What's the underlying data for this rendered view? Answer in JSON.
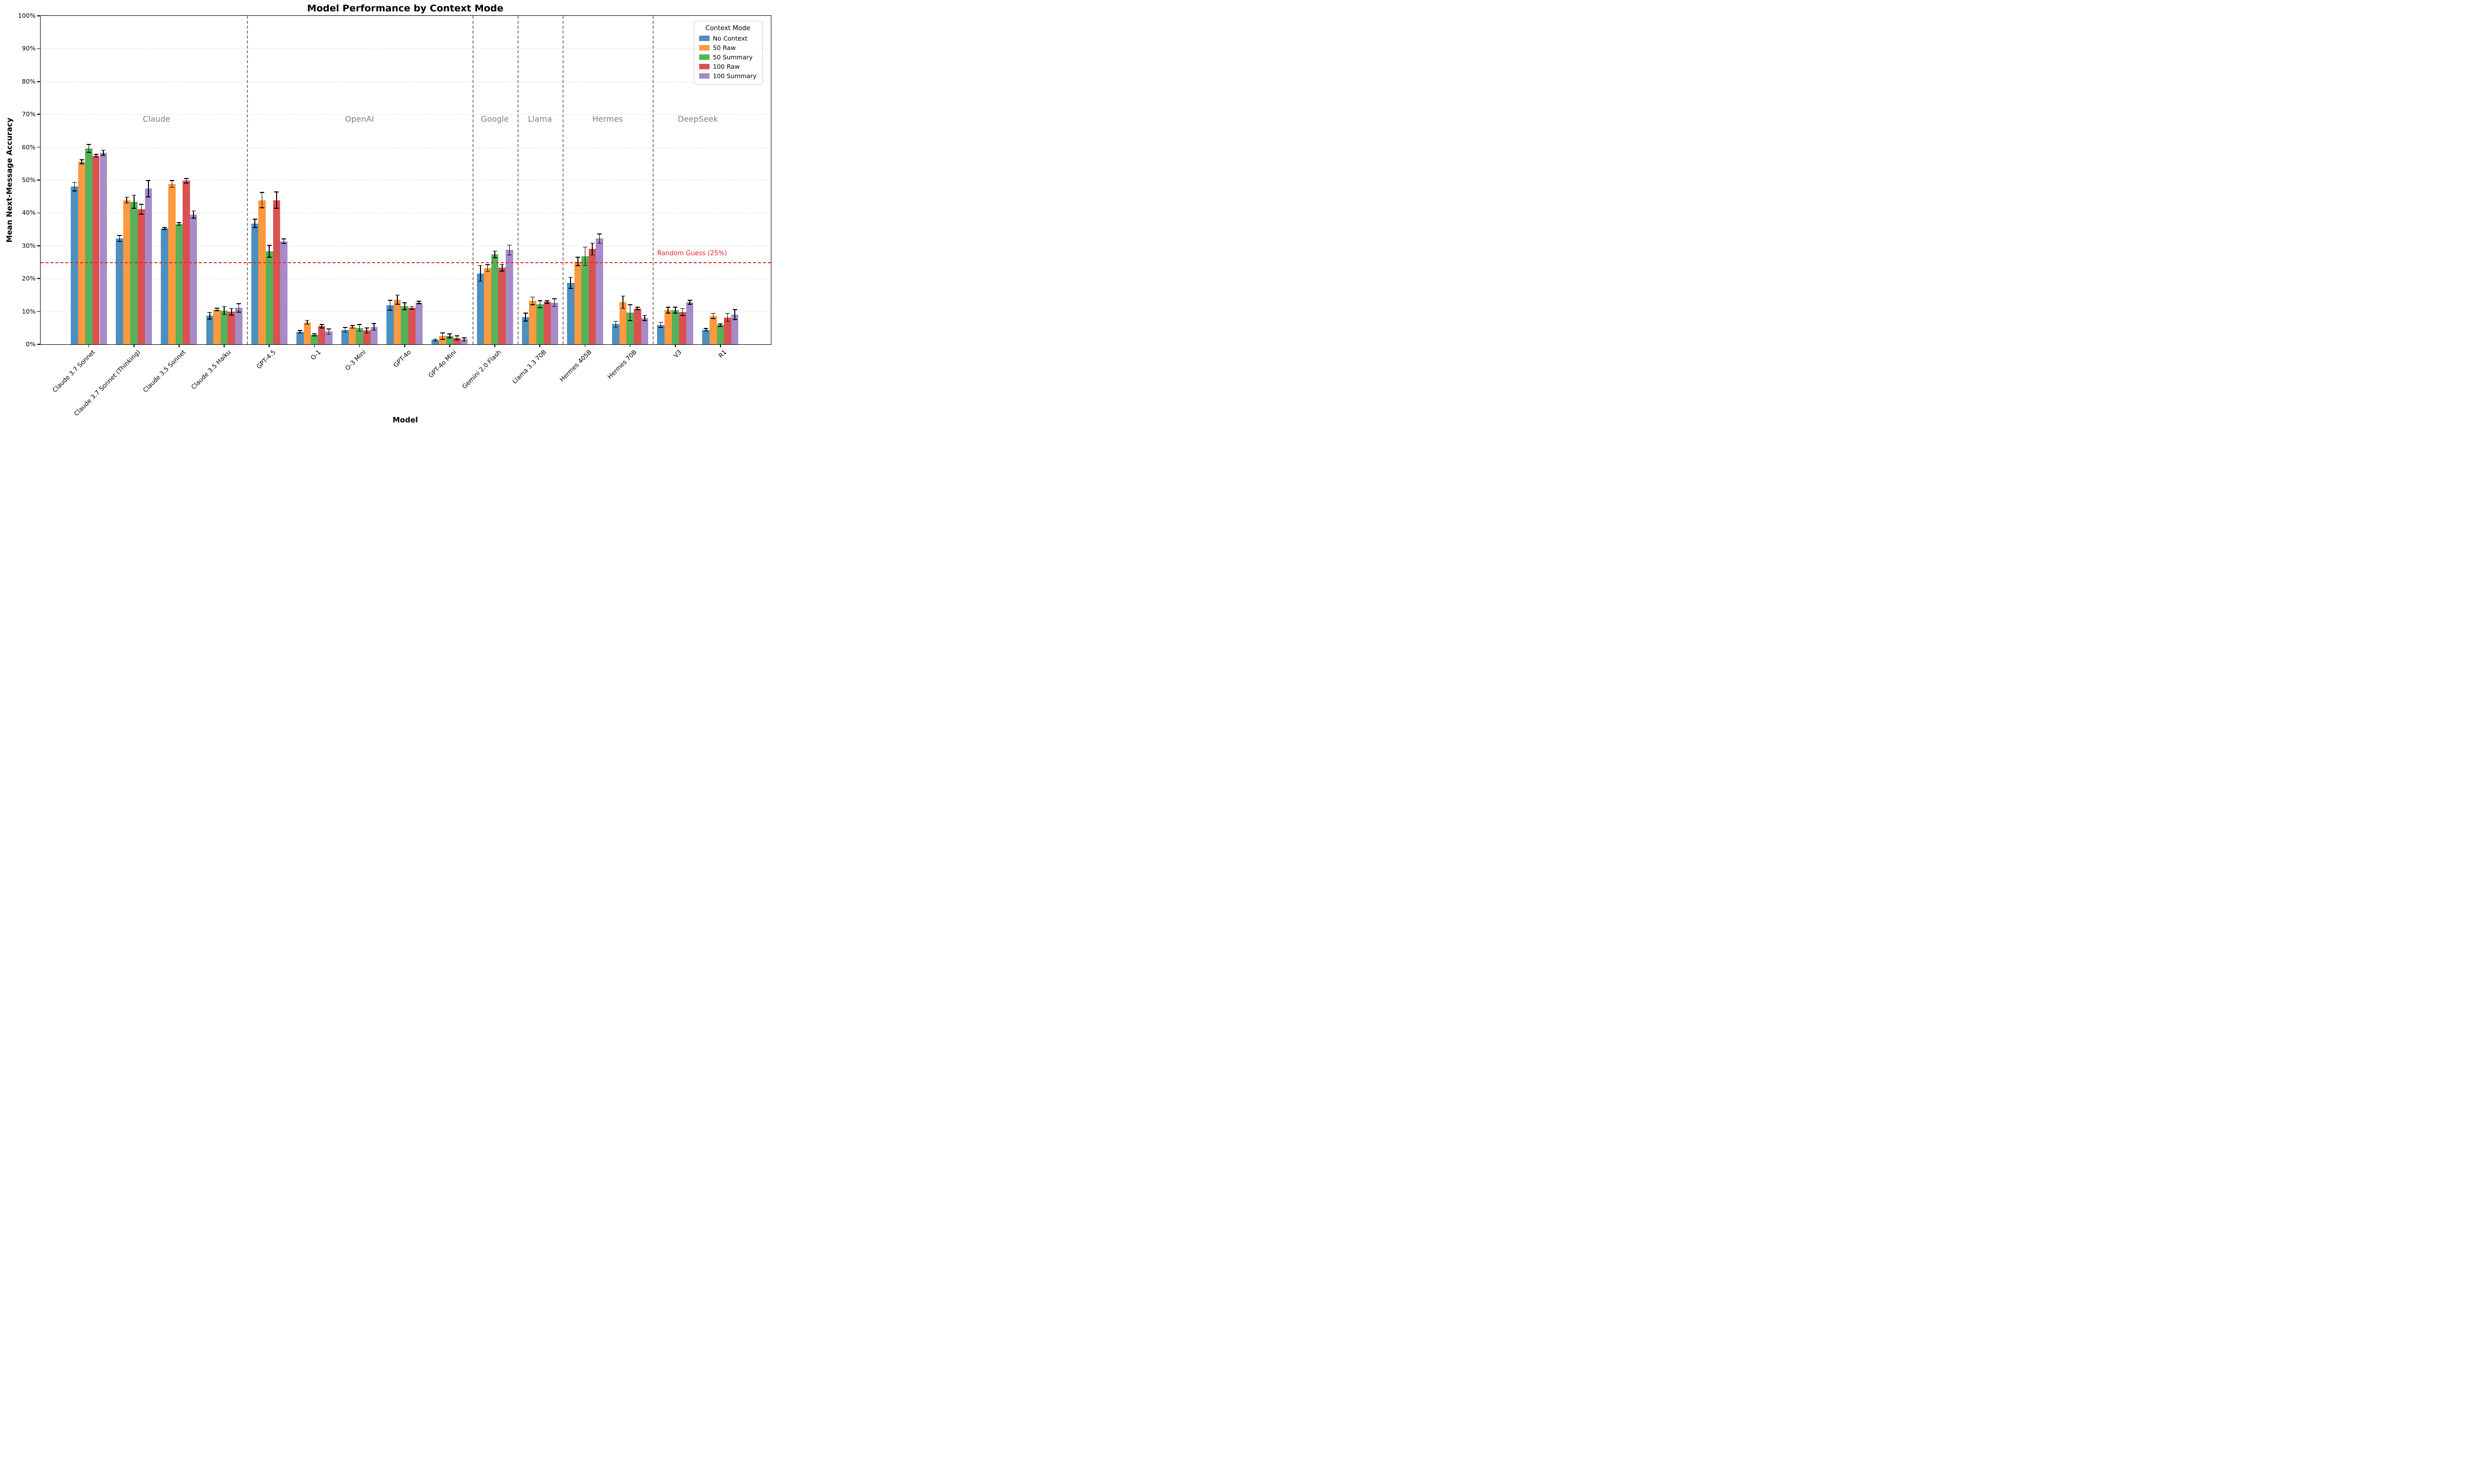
{
  "title": "Model Performance by Context Mode",
  "axes": {
    "ylabel": "Mean Next-Message Accuracy",
    "xlabel": "Model",
    "ytick_labels": [
      "0%",
      "10%",
      "20%",
      "30%",
      "40%",
      "50%",
      "60%",
      "70%",
      "80%",
      "90%",
      "100%"
    ]
  },
  "legend": {
    "title": "Context Mode",
    "position": "upper right"
  },
  "annotations": {
    "random_guess_label": "Random Guess (25%)"
  },
  "colors": {
    "grid": "#dcdcdc",
    "divider": "#808080",
    "section_label": "#7f7f7f",
    "reference_line": "#ee2222",
    "no_context": "#4C90C0",
    "raw_50": "#FD9A3F",
    "summary_50": "#55B25A",
    "raw_100": "#DB5152",
    "summary_100": "#A78BC9"
  },
  "chart_data": {
    "type": "bar",
    "title": "Model Performance by Context Mode",
    "xlabel": "Model",
    "ylabel": "Mean Next-Message Accuracy",
    "ylim": [
      0,
      100
    ],
    "grid": "horizontal-dashed",
    "legend_position": "upper right",
    "categories": [
      "Claude 3.7 Sonnet",
      "Claude 3.7 Sonnet (Thinking)",
      "Claude 3.5 Sonnet",
      "Claude 3.5 Haiku",
      "GPT-4.5",
      "O-1",
      "O-3 Mini",
      "GPT-4o",
      "GPT-4o Mini",
      "Gemini 2.0 Flash",
      "Llama 3.3 70B",
      "Hermes 405B",
      "Hermes 70B",
      "V3",
      "R1"
    ],
    "series": [
      {
        "name": "No Context",
        "color": "#4C90C0",
        "values": [
          48.0,
          32.2,
          35.2,
          8.7,
          36.8,
          3.8,
          4.4,
          11.9,
          1.3,
          21.6,
          8.3,
          18.7,
          6.1,
          5.9,
          4.4
        ],
        "errors": [
          1.3,
          0.9,
          0.3,
          1.0,
          1.3,
          0.4,
          0.7,
          1.5,
          0.3,
          2.4,
          1.2,
          1.7,
          0.9,
          0.8,
          0.4
        ]
      },
      {
        "name": "50 Raw",
        "color": "#FD9A3F",
        "values": [
          55.6,
          43.9,
          48.8,
          10.6,
          43.9,
          6.7,
          5.3,
          13.6,
          2.5,
          23.2,
          13.2,
          25.2,
          12.8,
          10.4,
          8.6
        ],
        "errors": [
          0.6,
          0.9,
          1.0,
          0.4,
          2.3,
          0.6,
          0.4,
          1.4,
          1.0,
          1.0,
          1.2,
          1.3,
          1.9,
          0.9,
          0.8
        ]
      },
      {
        "name": "50 Summary",
        "color": "#55B25A",
        "values": [
          59.6,
          43.4,
          36.6,
          10.3,
          28.3,
          2.9,
          5.0,
          11.6,
          2.6,
          27.4,
          12.2,
          26.8,
          9.6,
          10.4,
          5.8
        ],
        "errors": [
          1.2,
          2.0,
          0.4,
          1.2,
          1.8,
          0.3,
          1.0,
          1.1,
          0.6,
          1.0,
          1.1,
          2.8,
          2.4,
          0.9,
          0.4
        ]
      },
      {
        "name": "100 Raw",
        "color": "#DB5152",
        "values": [
          57.4,
          41.1,
          49.8,
          9.9,
          43.9,
          5.5,
          4.2,
          11.1,
          2.0,
          23.3,
          12.9,
          29.0,
          10.9,
          9.8,
          8.2
        ],
        "errors": [
          0.4,
          1.5,
          0.7,
          1.0,
          2.5,
          0.5,
          0.8,
          0.4,
          0.6,
          1.0,
          0.4,
          1.8,
          0.4,
          1.1,
          1.2
        ]
      },
      {
        "name": "100 Summary",
        "color": "#A78BC9",
        "values": [
          58.3,
          47.4,
          39.5,
          11.1,
          31.4,
          3.9,
          5.3,
          12.7,
          1.5,
          28.7,
          12.7,
          32.2,
          8.0,
          12.8,
          9.0
        ],
        "errors": [
          0.8,
          2.5,
          1.1,
          1.3,
          0.7,
          0.8,
          1.0,
          0.4,
          0.5,
          1.5,
          1.2,
          1.4,
          0.8,
          0.6,
          1.5
        ]
      }
    ],
    "sections": [
      {
        "label": "Claude",
        "start": 0,
        "end": 3
      },
      {
        "label": "OpenAI",
        "start": 4,
        "end": 8
      },
      {
        "label": "Google",
        "start": 9,
        "end": 9
      },
      {
        "label": "Llama",
        "start": 10,
        "end": 10
      },
      {
        "label": "Hermes",
        "start": 11,
        "end": 12
      },
      {
        "label": "DeepSeek",
        "start": 13,
        "end": 14
      }
    ],
    "section_label_y_percent": 68.5,
    "reference_line": {
      "value": 25,
      "label": "Random Guess (25%)"
    }
  }
}
